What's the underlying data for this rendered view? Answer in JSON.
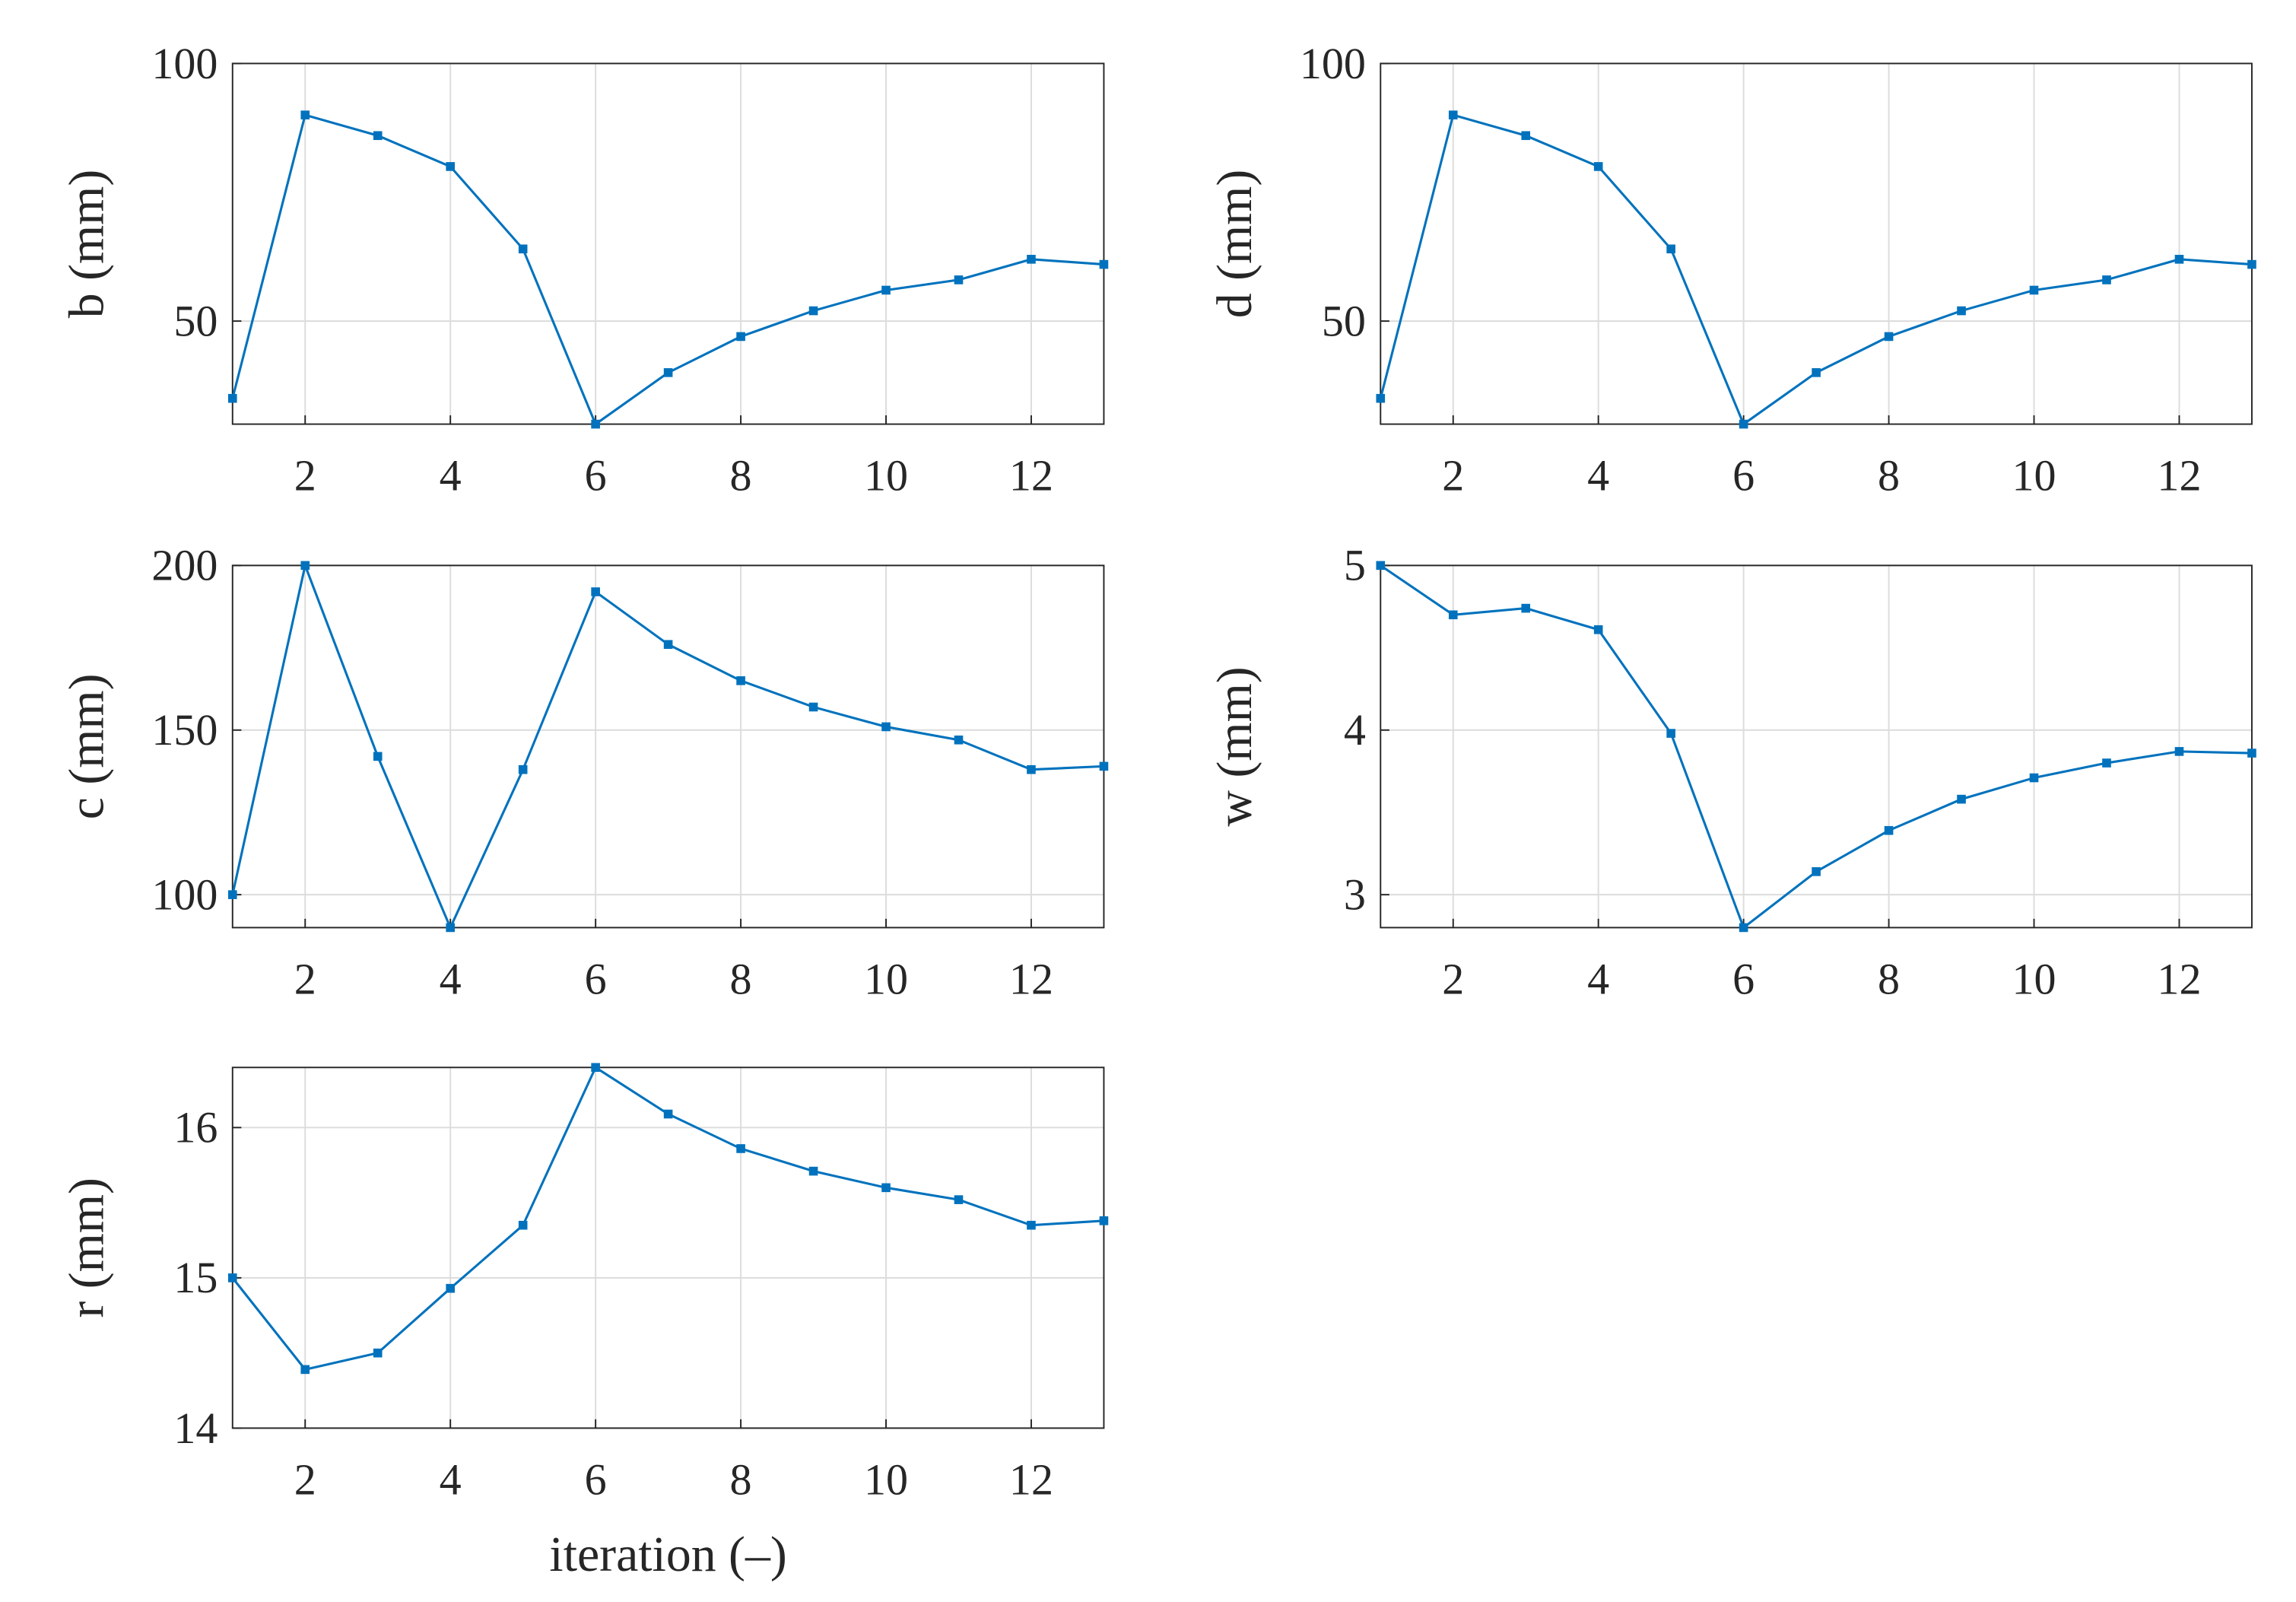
{
  "chart_data": [
    {
      "type": "line",
      "ylabel": "b (mm)",
      "x": [
        1,
        2,
        3,
        4,
        5,
        6,
        7,
        8,
        9,
        10,
        11,
        12,
        13
      ],
      "values": [
        35,
        90,
        86,
        80,
        64,
        30,
        40,
        47,
        52,
        56,
        58,
        62,
        61
      ],
      "color": "#0072bd",
      "xlim": [
        1,
        13
      ],
      "xticks": [
        2,
        4,
        6,
        8,
        10,
        12
      ],
      "ylim": [
        30,
        100
      ],
      "yticks": [
        50,
        100
      ],
      "grid": true
    },
    {
      "type": "line",
      "ylabel": "d (mm)",
      "x": [
        1,
        2,
        3,
        4,
        5,
        6,
        7,
        8,
        9,
        10,
        11,
        12,
        13
      ],
      "values": [
        35,
        90,
        86,
        80,
        64,
        30,
        40,
        47,
        52,
        56,
        58,
        62,
        61
      ],
      "color": "#0072bd",
      "xlim": [
        1,
        13
      ],
      "xticks": [
        2,
        4,
        6,
        8,
        10,
        12
      ],
      "ylim": [
        30,
        100
      ],
      "yticks": [
        50,
        100
      ],
      "grid": true
    },
    {
      "type": "line",
      "ylabel": "c (mm)",
      "x": [
        1,
        2,
        3,
        4,
        5,
        6,
        7,
        8,
        9,
        10,
        11,
        12,
        13
      ],
      "values": [
        100,
        200,
        142,
        90,
        138,
        192,
        176,
        165,
        157,
        151,
        147,
        138,
        139
      ],
      "color": "#0072bd",
      "xlim": [
        1,
        13
      ],
      "xticks": [
        2,
        4,
        6,
        8,
        10,
        12
      ],
      "ylim": [
        90,
        200
      ],
      "yticks": [
        100,
        150,
        200
      ],
      "grid": true
    },
    {
      "type": "line",
      "ylabel": "w (mm)",
      "x": [
        1,
        2,
        3,
        4,
        5,
        6,
        7,
        8,
        9,
        10,
        11,
        12,
        13
      ],
      "values": [
        5.0,
        4.7,
        4.74,
        4.61,
        3.98,
        2.8,
        3.14,
        3.39,
        3.58,
        3.71,
        3.8,
        3.87,
        3.86
      ],
      "color": "#0072bd",
      "xlim": [
        1,
        13
      ],
      "xticks": [
        2,
        4,
        6,
        8,
        10,
        12
      ],
      "ylim": [
        2.8,
        5
      ],
      "yticks": [
        3,
        4,
        5
      ],
      "grid": true
    },
    {
      "type": "line",
      "ylabel": "r (mm)",
      "xlabel": "iteration (–)",
      "x": [
        1,
        2,
        3,
        4,
        5,
        6,
        7,
        8,
        9,
        10,
        11,
        12,
        13
      ],
      "values": [
        15,
        14.39,
        14.5,
        14.93,
        15.35,
        16.4,
        16.09,
        15.86,
        15.71,
        15.6,
        15.52,
        15.35,
        15.38
      ],
      "color": "#0072bd",
      "xlim": [
        1,
        13
      ],
      "xticks": [
        2,
        4,
        6,
        8,
        10,
        12
      ],
      "ylim": [
        14,
        16.4
      ],
      "yticks": [
        14,
        15,
        16
      ],
      "grid": true
    }
  ]
}
